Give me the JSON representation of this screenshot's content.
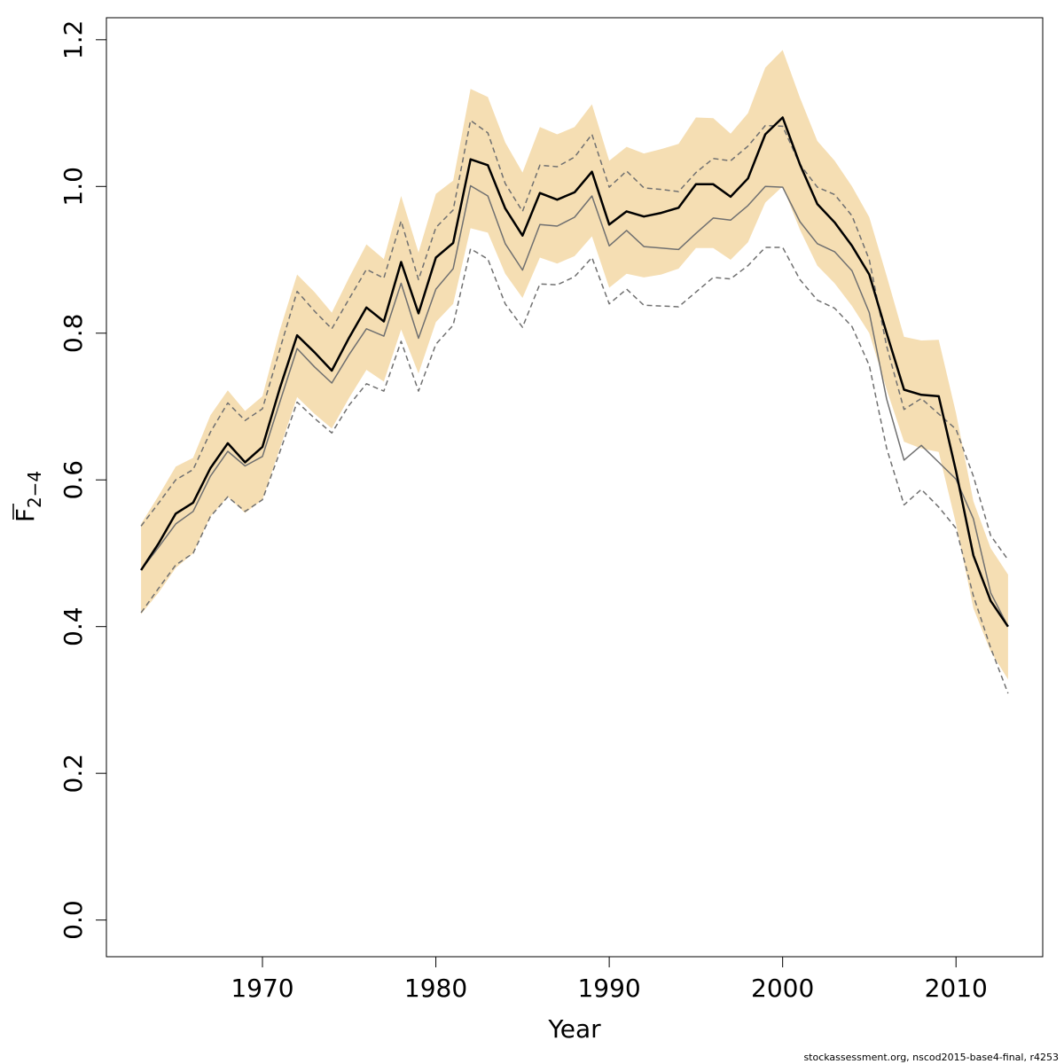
{
  "chart_data": {
    "type": "line",
    "xlabel": "Year",
    "ylabel": "F",
    "ylabel_subscript": "2−4",
    "xlim": [
      1961,
      2015
    ],
    "ylim": [
      -0.05,
      1.23
    ],
    "x_ticks": [
      1970,
      1980,
      1990,
      2000,
      2010
    ],
    "y_ticks": [
      0.0,
      0.2,
      0.4,
      0.6,
      0.8,
      1.0,
      1.2
    ],
    "y_tick_labels": [
      "0.0",
      "0.2",
      "0.4",
      "0.6",
      "0.8",
      "1.0",
      "1.2"
    ],
    "grid": false,
    "x": [
      1963,
      1964,
      1965,
      1966,
      1967,
      1968,
      1969,
      1970,
      1971,
      1972,
      1973,
      1974,
      1975,
      1976,
      1977,
      1978,
      1979,
      1980,
      1981,
      1982,
      1983,
      1984,
      1985,
      1986,
      1987,
      1988,
      1989,
      1990,
      1991,
      1992,
      1993,
      1994,
      1995,
      1996,
      1997,
      1998,
      1999,
      2000,
      2001,
      2002,
      2003,
      2004,
      2005,
      2006,
      2007,
      2008,
      2009,
      2010,
      2011,
      2012,
      2013
    ],
    "series": [
      {
        "role": "estimate",
        "color": "#000000",
        "values": [
          0.477,
          0.513,
          0.554,
          0.569,
          0.616,
          0.65,
          0.624,
          0.645,
          0.725,
          0.797,
          0.774,
          0.749,
          0.794,
          0.835,
          0.816,
          0.897,
          0.827,
          0.903,
          0.923,
          1.037,
          1.029,
          0.97,
          0.933,
          0.991,
          0.982,
          0.992,
          1.02,
          0.948,
          0.966,
          0.959,
          0.964,
          0.971,
          1.003,
          1.003,
          0.986,
          1.011,
          1.071,
          1.094,
          1.03,
          0.976,
          0.951,
          0.919,
          0.88,
          0.8,
          0.723,
          0.716,
          0.714,
          0.612,
          0.497,
          0.435,
          0.4
        ]
      },
      {
        "role": "ci-lower",
        "color": "#f5deb3",
        "values": [
          0.417,
          0.446,
          0.48,
          0.5,
          0.55,
          0.577,
          0.555,
          0.573,
          0.643,
          0.713,
          0.69,
          0.67,
          0.712,
          0.75,
          0.734,
          0.805,
          0.745,
          0.815,
          0.84,
          0.943,
          0.937,
          0.881,
          0.848,
          0.903,
          0.895,
          0.905,
          0.932,
          0.862,
          0.881,
          0.876,
          0.88,
          0.888,
          0.916,
          0.916,
          0.9,
          0.924,
          0.978,
          1.0,
          0.941,
          0.892,
          0.868,
          0.837,
          0.8,
          0.723,
          0.652,
          0.643,
          0.638,
          0.54,
          0.425,
          0.366,
          0.328
        ]
      },
      {
        "role": "ci-upper",
        "color": "#f5deb3",
        "values": [
          0.54,
          0.578,
          0.618,
          0.63,
          0.688,
          0.722,
          0.694,
          0.714,
          0.804,
          0.88,
          0.856,
          0.828,
          0.876,
          0.921,
          0.901,
          0.987,
          0.91,
          0.99,
          1.008,
          1.133,
          1.122,
          1.06,
          1.019,
          1.081,
          1.071,
          1.081,
          1.112,
          1.035,
          1.054,
          1.045,
          1.051,
          1.058,
          1.094,
          1.093,
          1.072,
          1.1,
          1.162,
          1.186,
          1.121,
          1.062,
          1.035,
          1.0,
          0.958,
          0.878,
          0.795,
          0.79,
          0.791,
          0.691,
          0.571,
          0.507,
          0.471
        ]
      },
      {
        "role": "comparison-run",
        "color": "#707070",
        "values": [
          0.477,
          0.508,
          0.54,
          0.557,
          0.605,
          0.639,
          0.619,
          0.632,
          0.706,
          0.779,
          0.754,
          0.732,
          0.771,
          0.806,
          0.796,
          0.868,
          0.793,
          0.86,
          0.888,
          1.001,
          0.987,
          0.922,
          0.886,
          0.948,
          0.946,
          0.958,
          0.987,
          0.919,
          0.94,
          0.918,
          0.916,
          0.914,
          0.936,
          0.957,
          0.954,
          0.974,
          1.0,
          0.999,
          0.952,
          0.922,
          0.911,
          0.885,
          0.828,
          0.71,
          0.627,
          0.647,
          0.624,
          0.601,
          0.547,
          0.446,
          0.4
        ]
      },
      {
        "role": "comparison-lower",
        "color": "#707070",
        "values": [
          0.419,
          0.452,
          0.484,
          0.5,
          0.55,
          0.577,
          0.557,
          0.573,
          0.638,
          0.706,
          0.684,
          0.664,
          0.702,
          0.731,
          0.721,
          0.789,
          0.721,
          0.785,
          0.811,
          0.915,
          0.901,
          0.84,
          0.808,
          0.867,
          0.866,
          0.877,
          0.903,
          0.84,
          0.86,
          0.838,
          0.837,
          0.836,
          0.856,
          0.876,
          0.874,
          0.892,
          0.917,
          0.917,
          0.873,
          0.845,
          0.834,
          0.809,
          0.756,
          0.643,
          0.566,
          0.587,
          0.563,
          0.534,
          0.442,
          0.371,
          0.309
        ]
      },
      {
        "role": "comparison-upper",
        "color": "#707070",
        "values": [
          0.537,
          0.568,
          0.6,
          0.614,
          0.665,
          0.705,
          0.681,
          0.697,
          0.778,
          0.857,
          0.83,
          0.806,
          0.847,
          0.887,
          0.875,
          0.953,
          0.873,
          0.944,
          0.968,
          1.09,
          1.073,
          1.004,
          0.966,
          1.029,
          1.027,
          1.04,
          1.071,
          0.999,
          1.021,
          0.998,
          0.996,
          0.993,
          1.019,
          1.038,
          1.035,
          1.055,
          1.083,
          1.082,
          1.03,
          0.999,
          0.989,
          0.96,
          0.9,
          0.782,
          0.696,
          0.711,
          0.69,
          0.669,
          0.605,
          0.524,
          0.491
        ]
      }
    ]
  },
  "footer": "stockassessment.org, nscod2015-base4-final, r4253"
}
